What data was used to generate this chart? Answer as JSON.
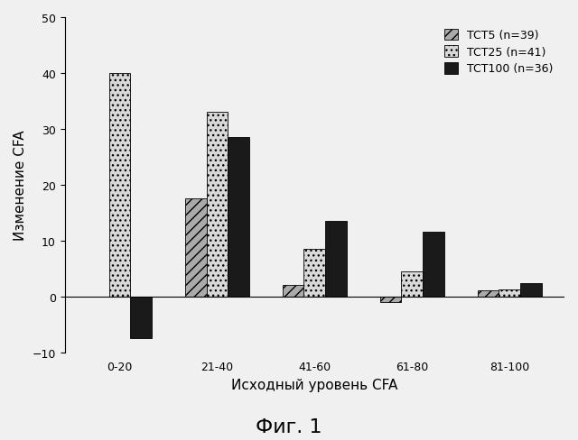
{
  "categories": [
    "0-20",
    "21-40",
    "41-60",
    "61-80",
    "81-100"
  ],
  "series": {
    "TCT5 (n=39)": [
      0.0,
      17.5,
      2.0,
      -1.0,
      1.0
    ],
    "TCT25 (n=41)": [
      40.0,
      33.0,
      8.5,
      4.5,
      1.3
    ],
    "TCT100 (n=36)": [
      -7.5,
      28.5,
      13.5,
      11.5,
      2.3
    ]
  },
  "colors": {
    "TCT5 (n=39)": "#aaaaaa",
    "TCT25 (n=41)": "#d8d8d8",
    "TCT100 (n=36)": "#1a1a1a"
  },
  "hatches": {
    "TCT5 (n=39)": "///",
    "TCT25 (n=41)": "...",
    "TCT100 (n=36)": ""
  },
  "ylabel": "Изменение CFA",
  "xlabel": "Исходный уровень CFA",
  "figure_label": "Фиг. 1",
  "ylim": [
    -10,
    50
  ],
  "yticks": [
    -10,
    0,
    10,
    20,
    30,
    40,
    50
  ],
  "bar_width": 0.22,
  "background_color": "#f0f0f0",
  "legend_fontsize": 9,
  "axis_fontsize": 11,
  "figure_label_fontsize": 16
}
